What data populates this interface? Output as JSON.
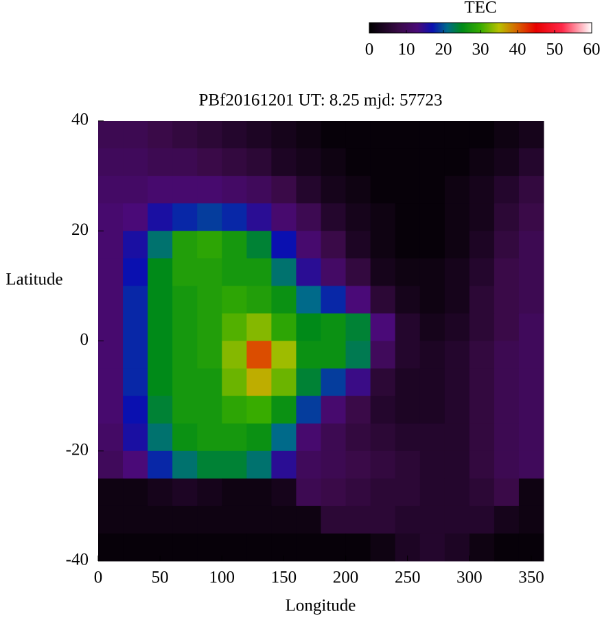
{
  "chart_data": {
    "type": "heatmap",
    "title": "PBf20161201  UT: 8.25  mjd: 57723",
    "xlabel": "Longitude",
    "ylabel": "Latitude",
    "x": [
      10,
      30,
      50,
      70,
      90,
      110,
      130,
      150,
      170,
      190,
      210,
      230,
      250,
      270,
      290,
      310,
      330,
      350
    ],
    "y": [
      37.5,
      32.5,
      27.5,
      22.5,
      17.5,
      12.5,
      7.5,
      2.5,
      -2.5,
      -7.5,
      -12.5,
      -17.5,
      -22.5,
      -27.5,
      -32.5,
      -37.5
    ],
    "values": [
      [
        9,
        9,
        8,
        7,
        6,
        5,
        4,
        3,
        2,
        1,
        1,
        1,
        1,
        1,
        1,
        1,
        2,
        3
      ],
      [
        10,
        10,
        9,
        9,
        8,
        7,
        6,
        4,
        3,
        2,
        1,
        1,
        1,
        1,
        1,
        2,
        3,
        5
      ],
      [
        11,
        11,
        12,
        12,
        12,
        11,
        10,
        8,
        5,
        3,
        2,
        1,
        1,
        1,
        2,
        3,
        5,
        7
      ],
      [
        12,
        13,
        16,
        18,
        19,
        18,
        15,
        12,
        9,
        5,
        3,
        2,
        1,
        1,
        2,
        3,
        6,
        8
      ],
      [
        12,
        16,
        22,
        28,
        29,
        27,
        24,
        17,
        12,
        8,
        4,
        2,
        1,
        1,
        2,
        4,
        7,
        9
      ],
      [
        12,
        17,
        25,
        28,
        28,
        27,
        27,
        22,
        15,
        11,
        7,
        3,
        2,
        2,
        3,
        5,
        8,
        9
      ],
      [
        12,
        18,
        25,
        27,
        28,
        29,
        28,
        26,
        21,
        18,
        13,
        6,
        3,
        2,
        3,
        6,
        8,
        9
      ],
      [
        12,
        18,
        25,
        27,
        28,
        31,
        33,
        29,
        25,
        26,
        24,
        13,
        5,
        3,
        4,
        6,
        8,
        10
      ],
      [
        12,
        18,
        25,
        27,
        28,
        33,
        41,
        34,
        26,
        26,
        23,
        10,
        5,
        4,
        5,
        7,
        9,
        10
      ],
      [
        12,
        18,
        25,
        27,
        27,
        32,
        36,
        32,
        24,
        19,
        14,
        6,
        4,
        4,
        5,
        7,
        9,
        10
      ],
      [
        12,
        17,
        24,
        27,
        27,
        29,
        30,
        26,
        19,
        12,
        8,
        5,
        4,
        4,
        5,
        7,
        9,
        10
      ],
      [
        11,
        16,
        22,
        26,
        27,
        27,
        26,
        21,
        12,
        9,
        7,
        6,
        5,
        5,
        5,
        7,
        9,
        10
      ],
      [
        10,
        13,
        18,
        22,
        24,
        24,
        22,
        15,
        10,
        9,
        8,
        7,
        6,
        5,
        5,
        7,
        9,
        10
      ],
      [
        2,
        2,
        3,
        4,
        3,
        2,
        2,
        3,
        9,
        8,
        7,
        6,
        6,
        5,
        5,
        6,
        8,
        2
      ],
      [
        2,
        2,
        2,
        2,
        2,
        2,
        2,
        2,
        2,
        6,
        6,
        6,
        5,
        5,
        5,
        5,
        3,
        2
      ],
      [
        1,
        1,
        1,
        1,
        1,
        1,
        1,
        1,
        1,
        1,
        1,
        2,
        4,
        5,
        4,
        2,
        1,
        1
      ]
    ],
    "xlim": [
      0,
      360
    ],
    "xticks": [
      0,
      50,
      100,
      150,
      200,
      250,
      300,
      350
    ],
    "ylim": [
      -40,
      40
    ],
    "yticks": [
      -40,
      -20,
      0,
      20,
      40
    ],
    "colorbar": {
      "label": "TEC",
      "lim": [
        0,
        60
      ],
      "ticks": [
        0,
        10,
        20,
        30,
        40,
        50,
        60
      ]
    },
    "colormap": [
      [
        0,
        "#000000"
      ],
      [
        8,
        "#3a0a48"
      ],
      [
        13,
        "#4a0a78"
      ],
      [
        17,
        "#0a10b0"
      ],
      [
        21,
        "#006a8a"
      ],
      [
        25,
        "#008a18"
      ],
      [
        30,
        "#38ac00"
      ],
      [
        35,
        "#b8c000"
      ],
      [
        40,
        "#d86000"
      ],
      [
        45,
        "#e80000"
      ],
      [
        52,
        "#ff2848"
      ],
      [
        60,
        "#ffffff"
      ]
    ]
  }
}
